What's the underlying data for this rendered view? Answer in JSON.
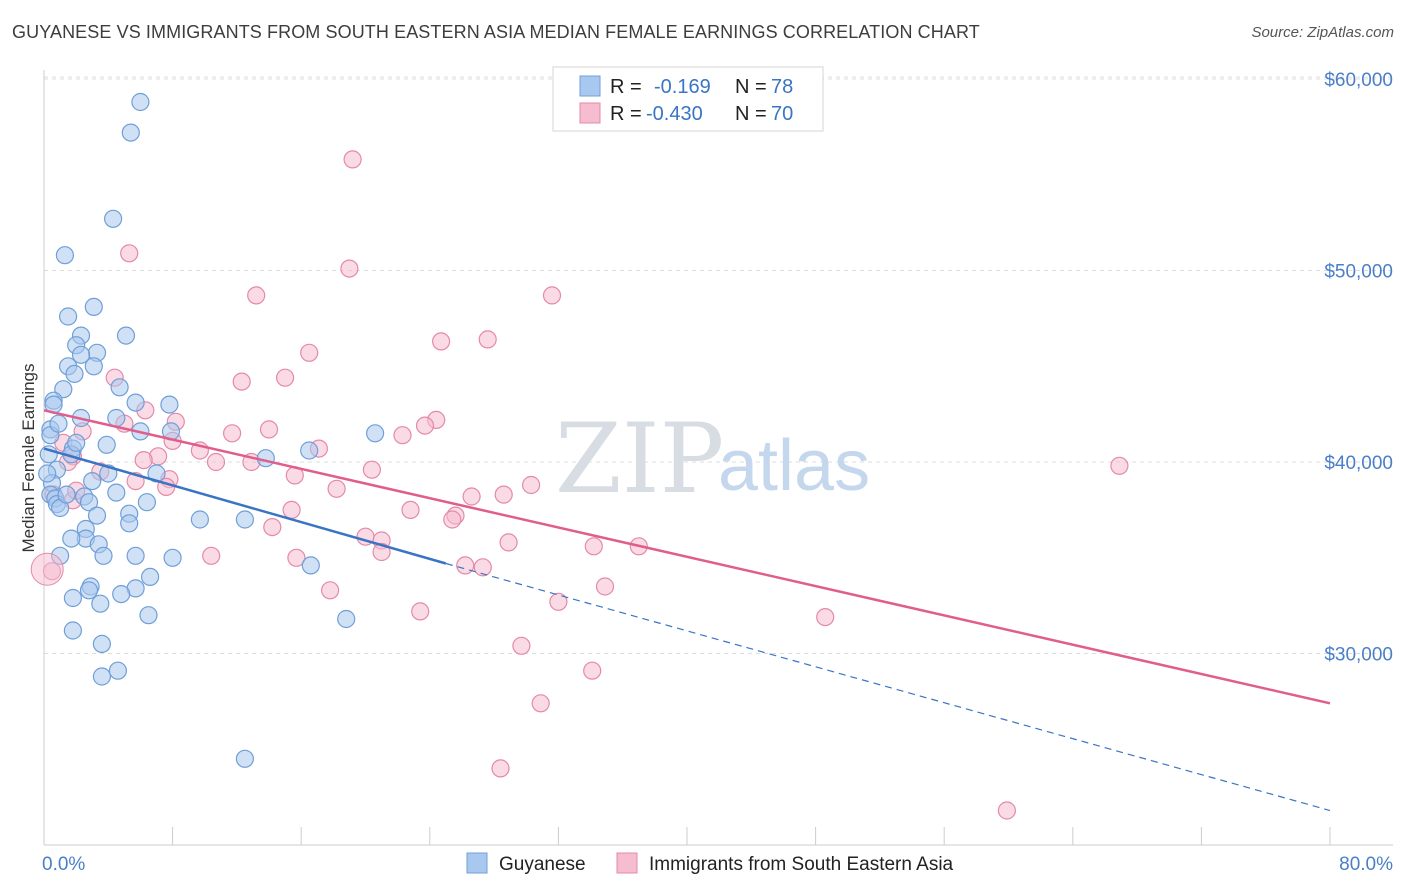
{
  "header": {
    "title": "GUYANESE VS IMMIGRANTS FROM SOUTH EASTERN ASIA MEDIAN FEMALE EARNINGS CORRELATION CHART",
    "source": "Source: ZipAtlas.com"
  },
  "watermark": {
    "zip": "ZIP",
    "atlas": "atlas"
  },
  "legend": {
    "rows": [
      {
        "r_label": "R =",
        "r_value": "-0.169",
        "n_label": "N =",
        "n_value": "78"
      },
      {
        "r_label": "R =",
        "r_value": "-0.430",
        "n_label": "N =",
        "n_value": "70"
      }
    ]
  },
  "colors": {
    "blue_fill": "#a9c8ef",
    "blue_stroke": "#6f9fd8",
    "blue_line": "#3a74c4",
    "pink_fill": "#f6bcd0",
    "pink_stroke": "#e48aa8",
    "pink_line": "#e05d8c",
    "grid": "#dddddd",
    "tick_text": "#4a7fc8"
  },
  "chart_data": {
    "type": "scatter",
    "title": "GUYANESE VS IMMIGRANTS FROM SOUTH EASTERN ASIA MEDIAN FEMALE EARNINGS CORRELATION CHART",
    "xlabel": "",
    "ylabel": "Median Female Earnings",
    "xlim": [
      0,
      80
    ],
    "ylim": [
      20000,
      62000
    ],
    "x_tick_labels": [
      "0.0%",
      "80.0%"
    ],
    "y_ticks": [
      30000,
      40000,
      50000,
      60000
    ],
    "y_tick_labels": [
      "$30,000",
      "$40,000",
      "$50,000",
      "$60,000"
    ],
    "grid": true,
    "legend_position": "top-center",
    "series": [
      {
        "name": "Guyanese",
        "color": "#a9c8ef",
        "points": [
          [
            6.0,
            58800
          ],
          [
            5.4,
            57200
          ],
          [
            4.3,
            52700
          ],
          [
            1.3,
            50800
          ],
          [
            3.1,
            48100
          ],
          [
            1.5,
            47600
          ],
          [
            5.1,
            46600
          ],
          [
            2.3,
            46600
          ],
          [
            2.0,
            46100
          ],
          [
            3.3,
            45700
          ],
          [
            2.3,
            45600
          ],
          [
            1.5,
            45000
          ],
          [
            3.1,
            45000
          ],
          [
            1.9,
            44600
          ],
          [
            4.7,
            43900
          ],
          [
            1.2,
            43800
          ],
          [
            0.6,
            43200
          ],
          [
            0.6,
            43000
          ],
          [
            5.7,
            43100
          ],
          [
            7.8,
            43000
          ],
          [
            4.5,
            42300
          ],
          [
            2.3,
            42300
          ],
          [
            0.4,
            41700
          ],
          [
            0.4,
            41400
          ],
          [
            6.0,
            41600
          ],
          [
            7.9,
            41600
          ],
          [
            20.6,
            41500
          ],
          [
            1.8,
            40700
          ],
          [
            1.7,
            40400
          ],
          [
            0.3,
            40400
          ],
          [
            3.9,
            40900
          ],
          [
            13.8,
            40200
          ],
          [
            16.5,
            40600
          ],
          [
            0.8,
            39600
          ],
          [
            4.0,
            39400
          ],
          [
            7.0,
            39400
          ],
          [
            0.5,
            38900
          ],
          [
            0.4,
            38300
          ],
          [
            0.7,
            38100
          ],
          [
            0.8,
            37800
          ],
          [
            2.5,
            38200
          ],
          [
            2.8,
            37900
          ],
          [
            4.5,
            38400
          ],
          [
            6.4,
            37900
          ],
          [
            1.0,
            37600
          ],
          [
            3.3,
            37200
          ],
          [
            5.3,
            37300
          ],
          [
            9.7,
            37000
          ],
          [
            12.5,
            37000
          ],
          [
            5.3,
            36800
          ],
          [
            2.6,
            36500
          ],
          [
            2.6,
            36000
          ],
          [
            3.4,
            35700
          ],
          [
            1.0,
            35100
          ],
          [
            3.7,
            35100
          ],
          [
            5.7,
            35100
          ],
          [
            8.0,
            35000
          ],
          [
            16.6,
            34600
          ],
          [
            6.6,
            34000
          ],
          [
            2.9,
            33500
          ],
          [
            5.7,
            33400
          ],
          [
            2.8,
            33300
          ],
          [
            4.8,
            33100
          ],
          [
            1.8,
            32900
          ],
          [
            3.5,
            32600
          ],
          [
            6.5,
            32000
          ],
          [
            18.8,
            31800
          ],
          [
            1.8,
            31200
          ],
          [
            3.6,
            30500
          ],
          [
            4.6,
            29100
          ],
          [
            3.6,
            28800
          ],
          [
            12.5,
            24500
          ],
          [
            0.2,
            39400
          ],
          [
            1.4,
            38300
          ],
          [
            1.7,
            36000
          ],
          [
            0.9,
            42000
          ],
          [
            2.0,
            41000
          ],
          [
            3.0,
            39000
          ]
        ]
      },
      {
        "name": "Immigrants from South Eastern Asia",
        "color": "#f6bcd0",
        "points": [
          [
            19.2,
            55800
          ],
          [
            5.3,
            50900
          ],
          [
            19.0,
            50100
          ],
          [
            13.2,
            48700
          ],
          [
            31.6,
            48700
          ],
          [
            27.6,
            46400
          ],
          [
            24.7,
            46300
          ],
          [
            16.5,
            45700
          ],
          [
            4.4,
            44400
          ],
          [
            15.0,
            44400
          ],
          [
            12.3,
            44200
          ],
          [
            6.3,
            42700
          ],
          [
            24.4,
            42200
          ],
          [
            23.7,
            41900
          ],
          [
            2.4,
            41600
          ],
          [
            8.2,
            42100
          ],
          [
            14.0,
            41700
          ],
          [
            11.7,
            41500
          ],
          [
            22.3,
            41400
          ],
          [
            8.0,
            41100
          ],
          [
            1.2,
            41000
          ],
          [
            7.1,
            40300
          ],
          [
            1.8,
            40300
          ],
          [
            9.7,
            40600
          ],
          [
            10.7,
            40000
          ],
          [
            12.9,
            40000
          ],
          [
            6.2,
            40100
          ],
          [
            17.1,
            40700
          ],
          [
            66.9,
            39800
          ],
          [
            20.4,
            39600
          ],
          [
            3.5,
            39500
          ],
          [
            7.8,
            39100
          ],
          [
            15.6,
            39300
          ],
          [
            5.7,
            39000
          ],
          [
            7.6,
            38700
          ],
          [
            18.2,
            38600
          ],
          [
            30.3,
            38800
          ],
          [
            28.6,
            38300
          ],
          [
            26.6,
            38200
          ],
          [
            0.6,
            38300
          ],
          [
            1.8,
            38000
          ],
          [
            15.4,
            37500
          ],
          [
            22.8,
            37500
          ],
          [
            25.6,
            37200
          ],
          [
            25.4,
            37000
          ],
          [
            14.2,
            36600
          ],
          [
            20.0,
            36100
          ],
          [
            21.0,
            35900
          ],
          [
            28.9,
            35800
          ],
          [
            34.2,
            35600
          ],
          [
            37.0,
            35600
          ],
          [
            10.4,
            35100
          ],
          [
            21.0,
            35300
          ],
          [
            15.7,
            35000
          ],
          [
            26.2,
            34600
          ],
          [
            27.3,
            34500
          ],
          [
            0.5,
            34300
          ],
          [
            34.9,
            33500
          ],
          [
            17.8,
            33300
          ],
          [
            32.0,
            32700
          ],
          [
            23.4,
            32200
          ],
          [
            48.6,
            31900
          ],
          [
            29.7,
            30400
          ],
          [
            34.1,
            29100
          ],
          [
            30.9,
            27400
          ],
          [
            28.4,
            24000
          ],
          [
            59.9,
            21800
          ],
          [
            1.5,
            40000
          ],
          [
            5.0,
            42000
          ],
          [
            2.0,
            38500
          ]
        ]
      }
    ],
    "trend_lines": [
      {
        "series": "Guyanese",
        "x_start": 0,
        "y_start": 40700,
        "x_end": 25,
        "y_end": 34700,
        "dashed_x_end": 80,
        "dashed_y_end": 21800
      },
      {
        "series": "Immigrants from South Eastern Asia",
        "x_start": 0,
        "y_start": 42700,
        "x_end": 80,
        "y_end": 27400
      }
    ]
  },
  "bottom_legend": {
    "items": [
      {
        "label": "Guyanese"
      },
      {
        "label": "Immigrants from South Eastern Asia"
      }
    ]
  }
}
